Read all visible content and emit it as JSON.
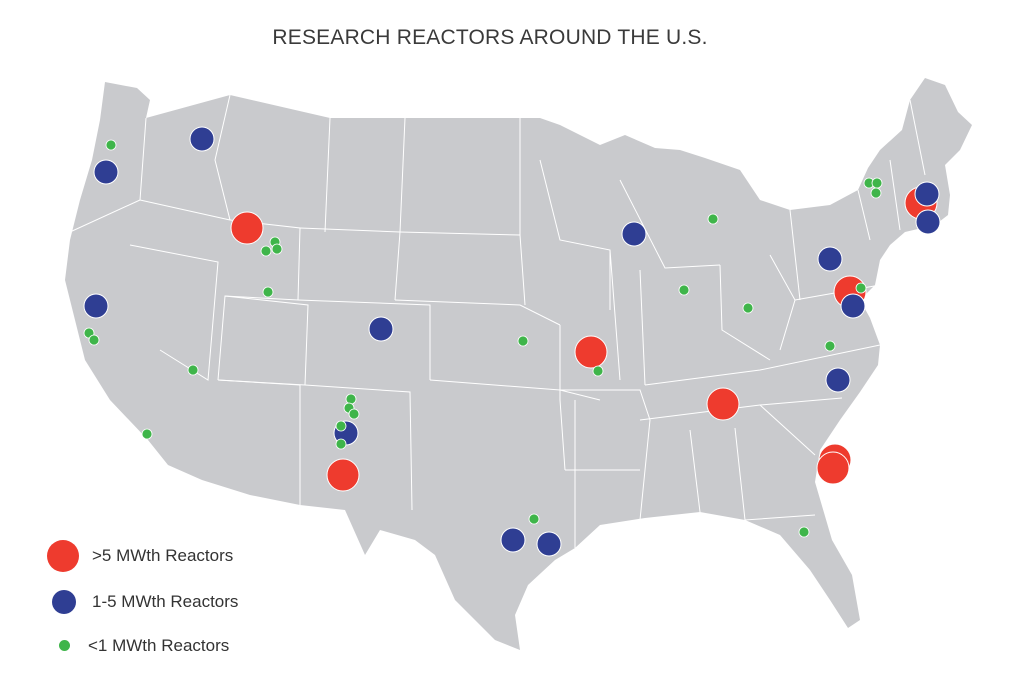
{
  "title": "RESEARCH REACTORS AROUND THE U.S.",
  "colors": {
    "land": "#c9cacd",
    "border": "#ffffff",
    "large": "#ee3b2e",
    "medium": "#2f3e93",
    "small": "#3fb54a"
  },
  "legend": [
    {
      "category": "large",
      "label": ">5 MWth Reactors"
    },
    {
      "category": "medium",
      "label": "1-5 MWth Reactors"
    },
    {
      "category": "small",
      "label": "<1 MWth Reactors"
    }
  ]
}
